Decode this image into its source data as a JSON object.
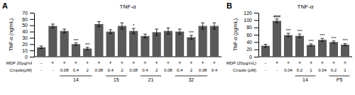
{
  "chart_data": [
    {
      "type": "bar",
      "panel_label": "A",
      "title": "TNF-α",
      "ylabel": "TNF-α (ng/mL)",
      "values": [
        15,
        49,
        41,
        20,
        13,
        52,
        40,
        49,
        41,
        33,
        39,
        41,
        40,
        31,
        49,
        49
      ],
      "errors": [
        2,
        3,
        3,
        2,
        2,
        4,
        3,
        5,
        4,
        3,
        5,
        5,
        4,
        3,
        5,
        5
      ],
      "color": "#595959",
      "ylim": [
        0,
        70
      ],
      "yticks": [
        0,
        10,
        20,
        30,
        40,
        50,
        60,
        70
      ],
      "annotations": [
        null,
        null,
        null,
        "***",
        "***",
        null,
        null,
        null,
        "*",
        null,
        null,
        null,
        null,
        "***",
        null,
        null
      ],
      "rows": [
        {
          "label": "MDP 20μg/ml",
          "values": [
            "-",
            "+",
            "+",
            "+",
            "+",
            "+",
            "+",
            "+",
            "+",
            "+",
            "+",
            "+",
            "+",
            "+",
            "+",
            "+"
          ]
        },
        {
          "label": "Cmpds(μM)",
          "values": [
            "-",
            "-",
            "0.08",
            "0.4",
            "2",
            "0.08",
            "0.4",
            "2",
            "0.08",
            "0.4",
            "2",
            "0.08",
            "0.4",
            "2",
            "0.08",
            "0.4"
          ]
        }
      ],
      "groups": [
        {
          "label": "14",
          "from": 2,
          "to": 4
        },
        {
          "label": "15",
          "from": 6,
          "to": 7
        },
        {
          "label": "21",
          "from": 9,
          "to": 10
        },
        {
          "label": "32",
          "from": 12,
          "to": 14
        }
      ]
    },
    {
      "type": "bar",
      "panel_label": "B",
      "title": "TNF-α",
      "ylabel": "TNF-α (pg/mL)",
      "values": [
        30,
        98,
        59,
        57,
        32,
        46,
        40,
        33
      ],
      "errors": [
        4,
        5,
        5,
        5,
        3,
        4,
        3,
        3
      ],
      "color": "#595959",
      "ylim": [
        0,
        120
      ],
      "yticks": [
        0,
        20,
        40,
        60,
        80,
        100,
        120
      ],
      "annotations": [
        null,
        "###",
        "***",
        "***",
        "***",
        "***",
        "***",
        "***"
      ],
      "rows": [
        {
          "label": "MDP (20μg/mL)",
          "values": [
            "-",
            "+",
            "+",
            "+",
            "+",
            "+",
            "+",
            "+"
          ]
        },
        {
          "label": "Cmpds (μM)",
          "values": [
            "-",
            "-",
            "0.04",
            "0.2",
            "1",
            "0.04",
            "0.2",
            "1"
          ]
        }
      ],
      "groups": [
        {
          "label": "14",
          "from": 3,
          "to": 4
        },
        {
          "label": "P5",
          "from": 6,
          "to": 7
        }
      ]
    }
  ]
}
